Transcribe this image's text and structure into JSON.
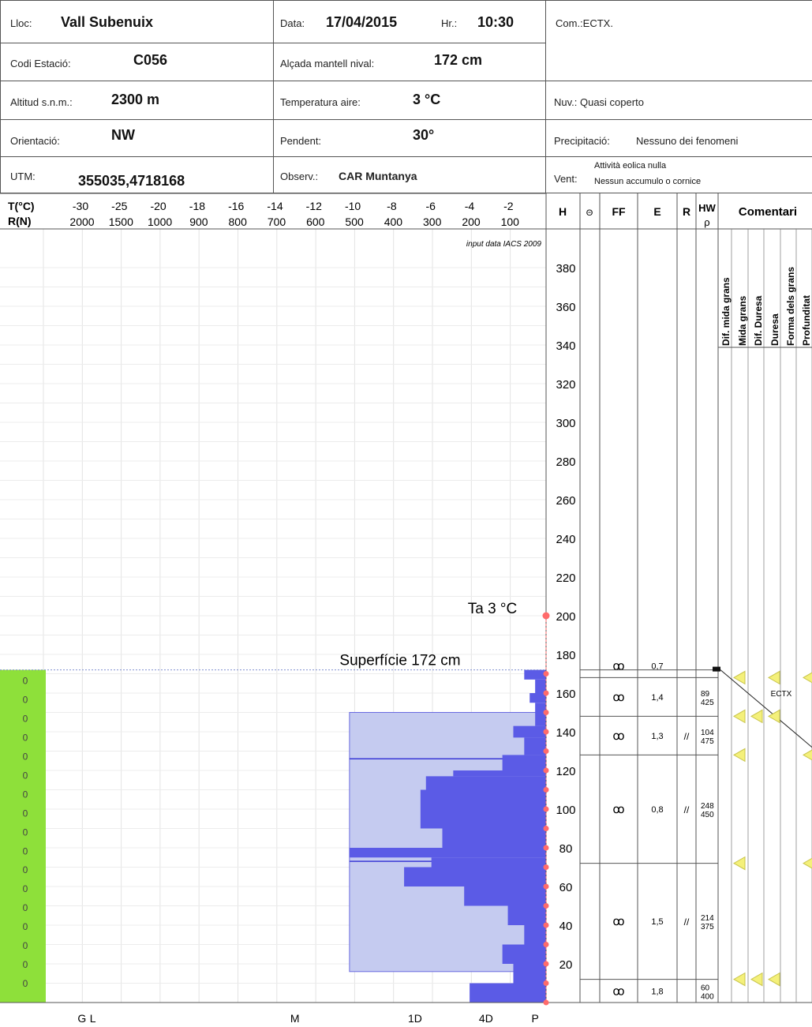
{
  "header": {
    "lloc_label": "Lloc:",
    "lloc": "Vall Subenuix",
    "data_label": "Data:",
    "data": "17/04/2015",
    "hr_label": "Hr.:",
    "hr": "10:30",
    "com": "Com.:ECTX.",
    "codi_label": "Codi Estació:",
    "codi": "C056",
    "alcada_label": "Alçada mantell nival:",
    "alcada": "172 cm",
    "altitud_label": "Altitud s.n.m.:",
    "altitud": "2300 m",
    "temp_label": "Temperatura aire:",
    "temp": "3 °C",
    "nuv": "Nuv.: Quasi coperto",
    "orient_label": "Orientació:",
    "orient": "NW",
    "pendent_label": "Pendent:",
    "pendent": "30°",
    "precip_label": "Precipitació:",
    "precip": "Nessuno dei fenomeni",
    "utm_label": "UTM:",
    "utm": "355035,4718168",
    "observ_label": "Observ.:",
    "observ": "CAR Muntanya",
    "vent_label": "Vent:",
    "vent1": "Attività eolica nulla",
    "vent2": "Nessun accumulo o cornice"
  },
  "colors": {
    "profile_fill": "#5b5be6",
    "ram_fill": "#c5cbf0",
    "ram_stroke": "#6a6ae0",
    "green": "#8ee03a",
    "temp_marker": "#ff6b6b",
    "triangle": "#f4f07a"
  },
  "chart_data": {
    "type": "area",
    "axes_top": {
      "t_label": "T(°C)",
      "r_label": "R(N)",
      "t_ticks": [
        "-30",
        "-25",
        "-20",
        "-18",
        "-16",
        "-14",
        "-12",
        "-10",
        "-8",
        "-6",
        "-4",
        "-2"
      ],
      "r_ticks": [
        "2000",
        "1500",
        "1000",
        "900",
        "800",
        "700",
        "600",
        "500",
        "400",
        "300",
        "200",
        "100"
      ]
    },
    "hardness_axis_labels": [
      {
        "text": "G",
        "pos": 0.15
      },
      {
        "text": "L",
        "pos": 0.17
      },
      {
        "text": "M",
        "pos": 0.54
      },
      {
        "text": "1D",
        "pos": 0.76
      },
      {
        "text": "4D",
        "pos": 0.89
      },
      {
        "text": "P",
        "pos": 0.98
      }
    ],
    "source_note": "input data IACS 2009",
    "ylim": [
      0,
      390
    ],
    "height_ticks": [
      20,
      40,
      60,
      80,
      100,
      120,
      140,
      160,
      180,
      200,
      220,
      240,
      260,
      280,
      300,
      320,
      340,
      360,
      380
    ],
    "air_temperature": {
      "label": "Ta 3 °C",
      "value": 3
    },
    "surface": {
      "label": "Superfície 172 cm",
      "height": 172
    },
    "snow_temperature_points": [
      {
        "h": 0,
        "t": 0
      },
      {
        "h": 10,
        "t": 0
      },
      {
        "h": 20,
        "t": 0
      },
      {
        "h": 30,
        "t": 0
      },
      {
        "h": 40,
        "t": 0
      },
      {
        "h": 50,
        "t": 0
      },
      {
        "h": 60,
        "t": 0
      },
      {
        "h": 70,
        "t": 0
      },
      {
        "h": 80,
        "t": 0
      },
      {
        "h": 90,
        "t": 0
      },
      {
        "h": 100,
        "t": 0
      },
      {
        "h": 110,
        "t": 0
      },
      {
        "h": 120,
        "t": 0
      },
      {
        "h": 130,
        "t": 0
      },
      {
        "h": 140,
        "t": 0
      },
      {
        "h": 150,
        "t": 0
      },
      {
        "h": 160,
        "t": 0
      },
      {
        "h": 170,
        "t": 0
      }
    ],
    "temperature_column_labels": [
      "0",
      "0",
      "0",
      "0",
      "0",
      "0",
      "0",
      "0",
      "0",
      "0",
      "0",
      "0",
      "0",
      "0",
      "0",
      "0",
      "0"
    ],
    "hand_hardness_profile": [
      {
        "h0": 0,
        "h1": 10,
        "pos": 0.86
      },
      {
        "h0": 10,
        "h1": 20,
        "pos": 0.94
      },
      {
        "h0": 20,
        "h1": 30,
        "pos": 0.92
      },
      {
        "h0": 30,
        "h1": 40,
        "pos": 0.96
      },
      {
        "h0": 40,
        "h1": 50,
        "pos": 0.93
      },
      {
        "h0": 50,
        "h1": 60,
        "pos": 0.85
      },
      {
        "h0": 60,
        "h1": 70,
        "pos": 0.74
      },
      {
        "h0": 70,
        "h1": 75,
        "pos": 0.79
      },
      {
        "h0": 75,
        "h1": 80,
        "pos": 0.64
      },
      {
        "h0": 80,
        "h1": 90,
        "pos": 0.81
      },
      {
        "h0": 90,
        "h1": 110,
        "pos": 0.77
      },
      {
        "h0": 110,
        "h1": 117,
        "pos": 0.78
      },
      {
        "h0": 117,
        "h1": 120,
        "pos": 0.83
      },
      {
        "h0": 120,
        "h1": 128,
        "pos": 0.92
      },
      {
        "h0": 128,
        "h1": 137,
        "pos": 0.96
      },
      {
        "h0": 137,
        "h1": 143,
        "pos": 0.94
      },
      {
        "h0": 143,
        "h1": 155,
        "pos": 0.98
      },
      {
        "h0": 155,
        "h1": 160,
        "pos": 0.97
      },
      {
        "h0": 160,
        "h1": 167,
        "pos": 0.98
      },
      {
        "h0": 167,
        "h1": 172,
        "pos": 0.96
      }
    ],
    "ram_profile": [
      {
        "h0": 16,
        "h1": 150,
        "pos": 0.64
      }
    ],
    "ram_lines": [
      73,
      126
    ],
    "columns": [
      "H",
      "Θ",
      "FF",
      "E",
      "R",
      "HW",
      "ρ",
      "Comentari"
    ],
    "comment_columns": [
      "Dif. mida grans",
      "Mida grans",
      "Dif. Duresa",
      "Duresa",
      "Forma dels grans",
      "Profunditat"
    ],
    "layers": [
      {
        "top": 180,
        "bottom": 168,
        "ff": "ꝏ",
        "e": "0,7",
        "r": "",
        "hw": "",
        "rho": ""
      },
      {
        "top": 168,
        "bottom": 148,
        "ff": "ꝏ",
        "e": "1,4",
        "r": "",
        "hw": "89",
        "rho": "425"
      },
      {
        "top": 148,
        "bottom": 128,
        "ff": "ꝏ",
        "e": "1,3",
        "r": "//",
        "hw": "104",
        "rho": "475"
      },
      {
        "top": 128,
        "bottom": 72,
        "ff": "ꝏ",
        "e": "0,8",
        "r": "//",
        "hw": "248",
        "rho": "450"
      },
      {
        "top": 72,
        "bottom": 12,
        "ff": "ꝏ",
        "e": "1,5",
        "r": "//",
        "hw": "214",
        "rho": "375"
      },
      {
        "top": 12,
        "bottom": 0,
        "ff": "ꝏ",
        "e": "1,8",
        "r": "",
        "hw": "60",
        "rho": "400"
      }
    ],
    "test_label": "ECTX",
    "triangles": [
      {
        "h": 168,
        "cols": [
          0,
          2,
          4
        ]
      },
      {
        "h": 148,
        "cols": [
          0,
          1,
          2
        ]
      },
      {
        "h": 128,
        "cols": [
          0,
          4
        ]
      },
      {
        "h": 72,
        "cols": [
          0,
          4
        ]
      },
      {
        "h": 12,
        "cols": [
          0,
          1,
          2
        ]
      }
    ]
  }
}
